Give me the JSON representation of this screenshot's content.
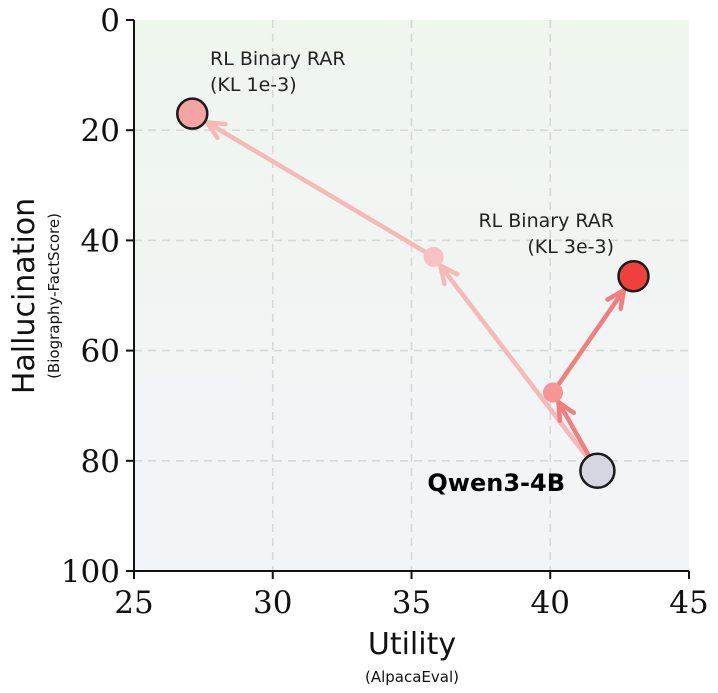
{
  "chart_data": {
    "type": "scatter",
    "xlabel": "Utility",
    "xlabel_sub": "(AlpacaEval)",
    "ylabel": "Hallucination",
    "ylabel_sub": "(Biography-FactScore)",
    "xlim": [
      25,
      45
    ],
    "ylim": [
      0,
      100
    ],
    "y_inverted": true,
    "xticks": [
      25,
      30,
      35,
      40,
      45
    ],
    "yticks": [
      0,
      20,
      40,
      60,
      80,
      100
    ],
    "grid": true,
    "points": [
      {
        "id": "base",
        "label": "Qwen3-4B",
        "x": 41.7,
        "y": 81.8,
        "color": "#d5d6e0",
        "role": "start"
      },
      {
        "id": "kl1e3-mid",
        "label": "",
        "x": 35.8,
        "y": 43.0,
        "color": "#f7c2c2",
        "role": "intermediate"
      },
      {
        "id": "kl1e3-end",
        "label": "RL Binary RAR",
        "label_line2": "(KL 1e-3)",
        "x": 27.1,
        "y": 17.0,
        "color": "#f5a3a3",
        "role": "end"
      },
      {
        "id": "kl3e3-mid",
        "label": "",
        "x": 40.1,
        "y": 67.6,
        "color": "#f79595",
        "role": "intermediate"
      },
      {
        "id": "kl3e3-end",
        "label": "RL Binary RAR",
        "label_line2": "(KL 3e-3)",
        "x": 43.0,
        "y": 46.5,
        "color": "#f0403d",
        "role": "end"
      }
    ],
    "paths": [
      {
        "name": "KL 1e-3",
        "points": [
          "base",
          "kl1e3-mid",
          "kl1e3-end"
        ],
        "color": "#f7b8b8"
      },
      {
        "name": "KL 3e-3",
        "points": [
          "base",
          "kl3e3-mid",
          "kl3e3-end"
        ],
        "color": "#f27f7f"
      }
    ]
  }
}
